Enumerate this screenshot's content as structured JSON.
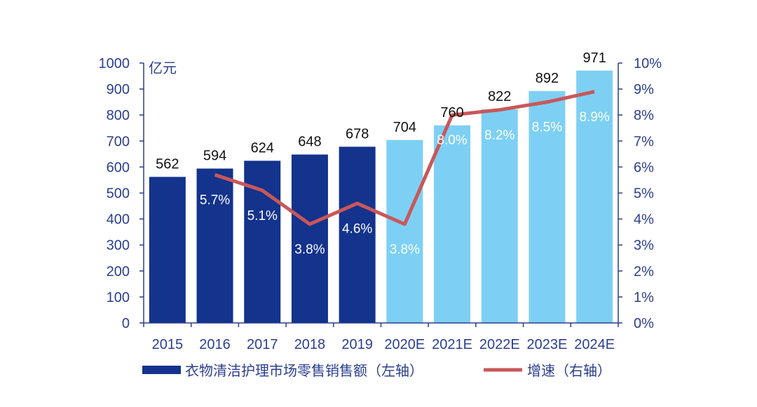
{
  "chart_data": {
    "type": "bar+line",
    "categories": [
      "2015",
      "2016",
      "2017",
      "2018",
      "2019",
      "2020E",
      "2021E",
      "2022E",
      "2023E",
      "2024E"
    ],
    "series": [
      {
        "name": "衣物清洁护理市场零售销售额（左轴）",
        "type": "bar",
        "axis": "left",
        "values": [
          562,
          594,
          624,
          648,
          678,
          704,
          760,
          822,
          892,
          971
        ],
        "labels": [
          "562",
          "594",
          "624",
          "648",
          "678",
          "704",
          "760",
          "822",
          "892",
          "971"
        ]
      },
      {
        "name": "增速（右轴）",
        "type": "line",
        "axis": "right",
        "values": [
          null,
          5.7,
          5.1,
          3.8,
          4.6,
          3.8,
          8.0,
          8.2,
          8.5,
          8.9
        ],
        "labels": [
          "",
          "5.7%",
          "5.1%",
          "3.8%",
          "4.6%",
          "3.8%",
          "8.0%",
          "8.2%",
          "8.5%",
          "8.9%"
        ]
      }
    ],
    "left_axis": {
      "unit": "亿元",
      "ylim": [
        0,
        1000
      ],
      "ticks": [
        "0",
        "100",
        "200",
        "300",
        "400",
        "500",
        "600",
        "700",
        "800",
        "900",
        "1000"
      ]
    },
    "right_axis": {
      "ylim": [
        0,
        10
      ],
      "ticks": [
        "0%",
        "1%",
        "2%",
        "3%",
        "4%",
        "5%",
        "6%",
        "7%",
        "8%",
        "9%",
        "10%"
      ]
    },
    "grid": false,
    "legend": "bottom",
    "colors": {
      "bar_actual": "#13338c",
      "bar_estimate": "#7dd0f4",
      "line": "#c9575a",
      "axis": "#2b3f8c"
    }
  }
}
